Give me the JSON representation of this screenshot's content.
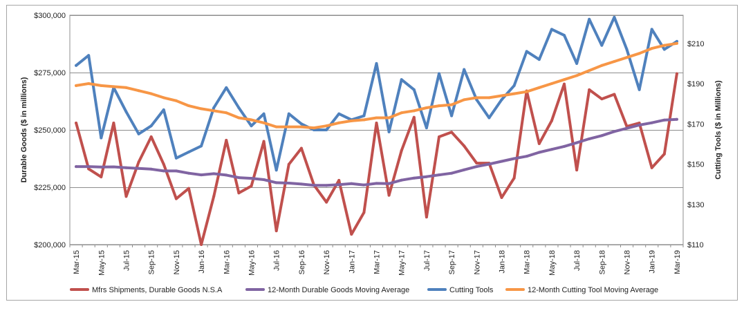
{
  "chart_data": {
    "type": "line",
    "x": [
      "Mar-15",
      "Apr-15",
      "May-15",
      "Jun-15",
      "Jul-15",
      "Aug-15",
      "Sep-15",
      "Oct-15",
      "Nov-15",
      "Dec-15",
      "Jan-16",
      "Feb-16",
      "Mar-16",
      "Apr-16",
      "May-16",
      "Jun-16",
      "Jul-16",
      "Aug-16",
      "Sep-16",
      "Oct-16",
      "Nov-16",
      "Dec-16",
      "Jan-17",
      "Feb-17",
      "Mar-17",
      "Apr-17",
      "May-17",
      "Jun-17",
      "Jul-17",
      "Aug-17",
      "Sep-17",
      "Oct-17",
      "Nov-17",
      "Dec-17",
      "Jan-18",
      "Feb-18",
      "Mar-18",
      "Apr-18",
      "May-18",
      "Jun-18",
      "Jul-18",
      "Aug-18",
      "Sep-18",
      "Oct-18",
      "Nov-18",
      "Dec-18",
      "Jan-19",
      "Feb-19",
      "Mar-19"
    ],
    "x_tick_labels": [
      "Mar-15",
      "May-15",
      "Jul-15",
      "Sep-15",
      "Nov-15",
      "Jan-16",
      "Mar-16",
      "May-16",
      "Jul-16",
      "Sep-16",
      "Nov-16",
      "Jan-17",
      "Mar-17",
      "May-17",
      "Jul-17",
      "Sep-17",
      "Nov-17",
      "Jan-18",
      "Mar-18",
      "May-18",
      "Jul-18",
      "Sep-18",
      "Nov-18",
      "Jan-19",
      "Mar-19"
    ],
    "left_axis": {
      "label": "Durable Goods ($ in millions)",
      "ylim": [
        200000,
        300000
      ],
      "ticks": [
        200000,
        225000,
        250000,
        275000,
        300000
      ],
      "tick_labels": [
        "$200,000",
        "$225,000",
        "$250,000",
        "$275,000",
        "$300,000"
      ]
    },
    "right_axis": {
      "label": "Cutting Tools ($ in Millions)",
      "ylim": [
        110,
        224
      ],
      "ticks": [
        110,
        130,
        150,
        170,
        190,
        210
      ],
      "tick_labels": [
        "$110",
        "$130",
        "$150",
        "$170",
        "$190",
        "$210"
      ]
    },
    "gridlines": "horizontal",
    "legend_position": "bottom",
    "series": [
      {
        "name": "Mfrs Shipments, Durable Goods N.S.A",
        "axis": "left",
        "color": "#c0504d",
        "values": [
          253000,
          233000,
          229500,
          253000,
          221000,
          236000,
          247000,
          235000,
          220000,
          224500,
          200000,
          221000,
          245500,
          222500,
          225500,
          245000,
          206000,
          235000,
          242000,
          226000,
          218500,
          228000,
          204500,
          214000,
          253000,
          221500,
          241000,
          255500,
          212000,
          247000,
          249000,
          243000,
          235500,
          235500,
          220500,
          229000,
          267000,
          244000,
          254000,
          270000,
          232500,
          267500,
          263500,
          265500,
          251500,
          253000,
          233500,
          239500,
          274500
        ]
      },
      {
        "name": "12-Month Durable Goods Moving Average",
        "axis": "left",
        "color": "#8064a2",
        "values": [
          234000,
          234000,
          233800,
          233900,
          233500,
          233200,
          232900,
          232100,
          232100,
          231100,
          230400,
          230900,
          230300,
          229200,
          228900,
          228300,
          227000,
          226800,
          226400,
          225800,
          225800,
          226100,
          226600,
          226000,
          226700,
          226600,
          228100,
          229000,
          229600,
          230400,
          231100,
          232600,
          234000,
          235100,
          236300,
          237500,
          238500,
          240200,
          241500,
          242800,
          244400,
          246100,
          247500,
          249300,
          250700,
          252100,
          253100,
          254300,
          254600
        ]
      },
      {
        "name": "Cutting Tools",
        "axis": "right",
        "color": "#4f81bd",
        "values": [
          199,
          204,
          163,
          188,
          176,
          165,
          169,
          177,
          153,
          156,
          159,
          178,
          188,
          178,
          169,
          175,
          147,
          175,
          170,
          167,
          167,
          175,
          172,
          174,
          200,
          166,
          192,
          187,
          168,
          195,
          174,
          197,
          182,
          173,
          182,
          189,
          206,
          202,
          217,
          214,
          200,
          222,
          209,
          223,
          207,
          187,
          217,
          207,
          211
        ]
      },
      {
        "name": "12-Month Cutting Tool Moving Average",
        "axis": "right",
        "color": "#f79646",
        "values": [
          189,
          190,
          189,
          188.5,
          188,
          186.5,
          185,
          183,
          181.5,
          179,
          177.5,
          176.5,
          175.5,
          173,
          172,
          170.5,
          168.5,
          168.5,
          168.5,
          168,
          169,
          170.5,
          171.5,
          172,
          173,
          173,
          175.5,
          176.5,
          178,
          179,
          179.5,
          182,
          183,
          183,
          184,
          185,
          186,
          188,
          190,
          192,
          194,
          196.5,
          199,
          201,
          203,
          205,
          207.5,
          209,
          210
        ]
      }
    ]
  }
}
